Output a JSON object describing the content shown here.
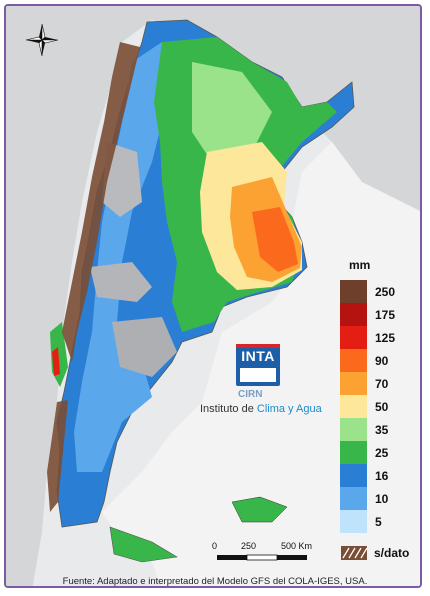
{
  "legend": {
    "unit": "mm",
    "classes": [
      {
        "label": "250",
        "color": "#6e3f2a"
      },
      {
        "label": "175",
        "color": "#b4130f"
      },
      {
        "label": "125",
        "color": "#e41e12"
      },
      {
        "label": "90",
        "color": "#fb6a1c"
      },
      {
        "label": "70",
        "color": "#fca233"
      },
      {
        "label": "50",
        "color": "#fde79b"
      },
      {
        "label": "35",
        "color": "#9be38a"
      },
      {
        "label": "25",
        "color": "#39b64a"
      },
      {
        "label": "16",
        "color": "#2a7fd4"
      },
      {
        "label": "10",
        "color": "#5aa7ec"
      },
      {
        "label": "5",
        "color": "#bfe3fb"
      }
    ],
    "no_data_label": "s/dato"
  },
  "logo": {
    "name": "INTA",
    "center": "CIRN",
    "institute_prefix": "Instituto de ",
    "institute_highlight": "Clima y Agua"
  },
  "scale_bar": {
    "labels": [
      "0",
      "250",
      "500 Km"
    ]
  },
  "footer": "Fuente: Adaptado e interpretado del Modelo GFS del COLA-IGES, USA."
}
